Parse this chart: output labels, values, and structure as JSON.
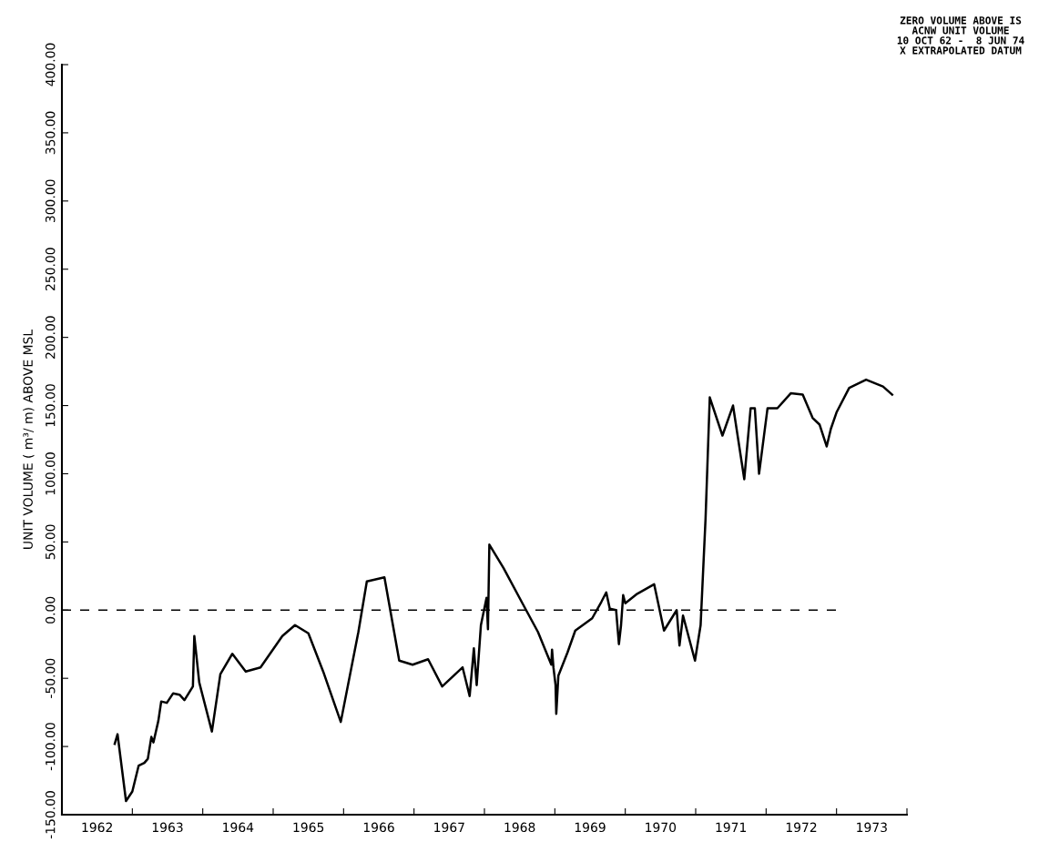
{
  "chart_data": {
    "type": "line",
    "ylabel": "UNIT VOLUME ( m³/ m) ABOVE MSL",
    "annotations": [
      "ZERO VOLUME ABOVE IS",
      "ACNW UNIT VOLUME",
      "10 OCT 62 -  8 JUN 74",
      "X EXTRAPOLATED DATUM"
    ],
    "xlim": [
      1962,
      1974
    ],
    "xticks": [
      {
        "value": 1962.5,
        "label": "1962"
      },
      {
        "value": 1963,
        "label": null
      },
      {
        "value": 1963.5,
        "label": "1963"
      },
      {
        "value": 1964,
        "label": null
      },
      {
        "value": 1964.5,
        "label": "1964"
      },
      {
        "value": 1965,
        "label": null
      },
      {
        "value": 1965.5,
        "label": "1965"
      },
      {
        "value": 1966,
        "label": null
      },
      {
        "value": 1966.5,
        "label": "1966"
      },
      {
        "value": 1967,
        "label": null
      },
      {
        "value": 1967.5,
        "label": "1967"
      },
      {
        "value": 1968,
        "label": null
      },
      {
        "value": 1968.5,
        "label": "1968"
      },
      {
        "value": 1969,
        "label": null
      },
      {
        "value": 1969.5,
        "label": "1969"
      },
      {
        "value": 1970,
        "label": null
      },
      {
        "value": 1970.5,
        "label": "1970"
      },
      {
        "value": 1971,
        "label": null
      },
      {
        "value": 1971.5,
        "label": "1971"
      },
      {
        "value": 1972,
        "label": null
      },
      {
        "value": 1972.5,
        "label": "1972"
      },
      {
        "value": 1973,
        "label": null
      },
      {
        "value": 1973.5,
        "label": "1973"
      },
      {
        "value": 1974,
        "label": null
      }
    ],
    "ylim": [
      -150,
      400
    ],
    "yticks": [
      {
        "value": -150,
        "label": "-150.00"
      },
      {
        "value": -100,
        "label": "-100.00"
      },
      {
        "value": -50,
        "label": "-50.00"
      },
      {
        "value": 0,
        "label": "0.00"
      },
      {
        "value": 50,
        "label": "50.00"
      },
      {
        "value": 100,
        "label": "100.00"
      },
      {
        "value": 150,
        "label": "150.00"
      },
      {
        "value": 200,
        "label": "200.00"
      },
      {
        "value": 250,
        "label": "250.00"
      },
      {
        "value": 300,
        "label": "300.00"
      },
      {
        "value": 350,
        "label": "350.00"
      },
      {
        "value": 400,
        "label": "400.00"
      }
    ],
    "grid": false,
    "legend": false,
    "marker": "none",
    "line_style": "solid",
    "ref_lines": [
      {
        "axis": "y",
        "value": 0,
        "color": "#000000",
        "line_style": "dashed"
      }
    ],
    "series": [
      {
        "color": "#000000",
        "x": [
          1962.75,
          1962.79,
          1962.91,
          1963.0,
          1963.09,
          1963.17,
          1963.22,
          1963.27,
          1963.3,
          1963.37,
          1963.41,
          1963.49,
          1963.58,
          1963.67,
          1963.74,
          1963.86,
          1963.88,
          1963.95,
          1964.13,
          1964.25,
          1964.42,
          1964.61,
          1964.82,
          1965.13,
          1965.31,
          1965.5,
          1965.71,
          1965.96,
          1966.21,
          1966.33,
          1966.58,
          1966.79,
          1966.98,
          1967.2,
          1967.4,
          1967.69,
          1967.79,
          1967.85,
          1967.89,
          1967.95,
          1968.03,
          1968.05,
          1968.07,
          1968.27,
          1968.55,
          1968.76,
          1968.95,
          1968.96,
          1968.98,
          1969.01,
          1969.02,
          1969.05,
          1969.18,
          1969.29,
          1969.53,
          1969.66,
          1969.73,
          1969.78,
          1969.87,
          1969.91,
          1969.94,
          1969.97,
          1970.0,
          1970.17,
          1970.41,
          1970.55,
          1970.73,
          1970.77,
          1970.82,
          1970.99,
          1971.07,
          1971.14,
          1971.2,
          1971.38,
          1971.53,
          1971.69,
          1971.78,
          1971.84,
          1971.9,
          1972.02,
          1972.16,
          1972.35,
          1972.52,
          1972.66,
          1972.76,
          1972.86,
          1972.92,
          1973.0,
          1973.18,
          1973.42,
          1973.66,
          1973.79
        ],
        "values": [
          -98,
          -91,
          -140,
          -133,
          -114,
          -112,
          -109,
          -93,
          -97,
          -81,
          -67,
          -68,
          -61,
          -62,
          -66,
          -56,
          -19,
          -53,
          -89,
          -47,
          -32,
          -45,
          -42,
          -19,
          -11,
          -17,
          -45,
          -82,
          -16,
          21,
          24,
          -37,
          -40,
          -36,
          -56,
          -42,
          -63,
          -28,
          -55,
          -11,
          9,
          -14,
          48,
          31,
          4,
          -16,
          -40,
          -29,
          -42,
          -55,
          -76,
          -48,
          -31,
          -15,
          -6,
          6,
          13,
          1,
          0,
          -25,
          -11,
          11,
          5,
          12,
          19,
          -15,
          0,
          -26,
          -4,
          -37,
          -11,
          67,
          156,
          128,
          150,
          96,
          148,
          148,
          100,
          148,
          148,
          159,
          158,
          141,
          136,
          120,
          133,
          145,
          163,
          169,
          164,
          158
        ]
      }
    ]
  }
}
